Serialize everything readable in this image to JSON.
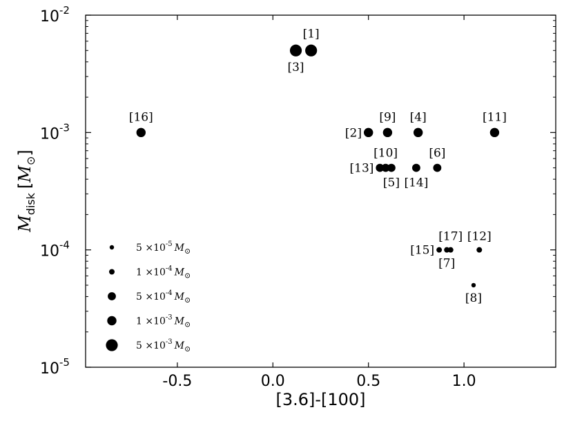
{
  "chart_data": {
    "type": "scatter",
    "xlabel": "[3.6]-[100]",
    "ylabel": "M_disk [M_sun]",
    "ylabel_main": "M",
    "ylabel_sub": "disk",
    "ylabel_unit_open": "[",
    "ylabel_unit_sym": "M",
    "ylabel_unit_sun": "⊙",
    "ylabel_unit_close": "]",
    "xlim": [
      -0.98,
      1.48
    ],
    "ylim": [
      1e-05,
      0.01
    ],
    "yscale": "log",
    "grid": false,
    "x_ticks": [
      {
        "value": -0.5,
        "label": "-0.5"
      },
      {
        "value": 0.0,
        "label": "0.0"
      },
      {
        "value": 0.5,
        "label": "0.5"
      },
      {
        "value": 1.0,
        "label": "1.0"
      }
    ],
    "y_ticks": [
      {
        "value": 1e-05,
        "base": "10",
        "exp": "-5"
      },
      {
        "value": 0.0001,
        "base": "10",
        "exp": "-4"
      },
      {
        "value": 0.001,
        "base": "10",
        "exp": "-3"
      },
      {
        "value": 0.01,
        "base": "10",
        "exp": "-2"
      }
    ],
    "points": [
      {
        "label": "[1]",
        "x": 0.2,
        "y": 0.005,
        "label_pos": "above"
      },
      {
        "label": "[3]",
        "x": 0.12,
        "y": 0.005,
        "label_pos": "below"
      },
      {
        "label": "[16]",
        "x": -0.69,
        "y": 0.001,
        "label_pos": "above"
      },
      {
        "label": "[2]",
        "x": 0.5,
        "y": 0.001,
        "label_pos": "left"
      },
      {
        "label": "[9]",
        "x": 0.6,
        "y": 0.001,
        "label_pos": "above"
      },
      {
        "label": "[4]",
        "x": 0.76,
        "y": 0.001,
        "label_pos": "above"
      },
      {
        "label": "[11]",
        "x": 1.16,
        "y": 0.001,
        "label_pos": "above"
      },
      {
        "label": "[13]",
        "x": 0.56,
        "y": 0.0005,
        "label_pos": "left"
      },
      {
        "label": "[10]",
        "x": 0.59,
        "y": 0.0005,
        "label_pos": "above"
      },
      {
        "label": "[5]",
        "x": 0.62,
        "y": 0.0005,
        "label_pos": "below"
      },
      {
        "label": "[14]",
        "x": 0.75,
        "y": 0.0005,
        "label_pos": "below"
      },
      {
        "label": "[6]",
        "x": 0.86,
        "y": 0.0005,
        "label_pos": "above"
      },
      {
        "label": "[15]",
        "x": 0.87,
        "y": 0.0001,
        "label_pos": "left"
      },
      {
        "label": "[7]",
        "x": 0.91,
        "y": 0.0001,
        "label_pos": "below"
      },
      {
        "label": "[17]",
        "x": 0.93,
        "y": 0.0001,
        "label_pos": "above"
      },
      {
        "label": "[12]",
        "x": 1.08,
        "y": 0.0001,
        "label_pos": "above"
      },
      {
        "label": "[8]",
        "x": 1.05,
        "y": 5e-05,
        "label_pos": "below"
      }
    ],
    "legend": {
      "placement": "lower-left",
      "entries": [
        {
          "value": 5e-05,
          "mant": "5",
          "exp": "-5",
          "sun": "⊙"
        },
        {
          "value": 0.0001,
          "mant": "1",
          "exp": "-4",
          "sun": "⊙"
        },
        {
          "value": 0.0005,
          "mant": "5",
          "exp": "-4",
          "sun": "⊙"
        },
        {
          "value": 0.001,
          "mant": "1",
          "exp": "-3",
          "sun": "⊙"
        },
        {
          "value": 0.005,
          "mant": "5",
          "exp": "-3",
          "sun": "⊙"
        }
      ]
    },
    "marker_color": "#000000"
  }
}
